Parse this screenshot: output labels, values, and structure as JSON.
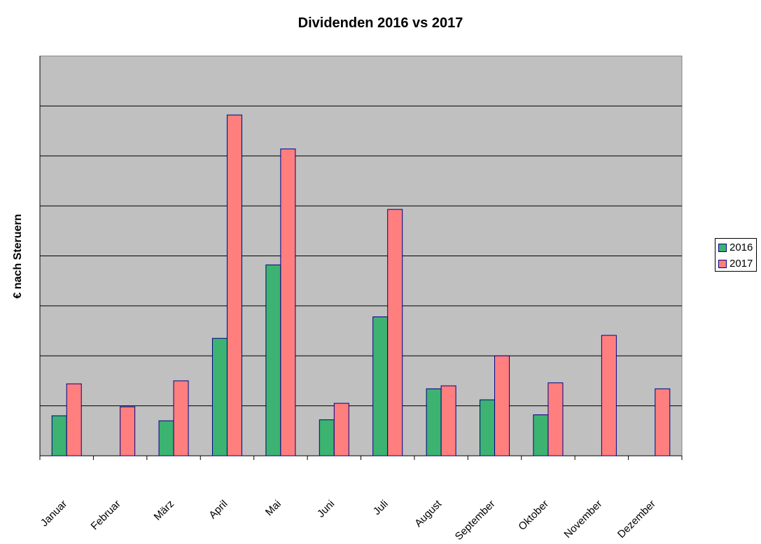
{
  "chart_data": {
    "type": "bar",
    "title": "Dividenden 2016 vs 2017",
    "xlabel": "",
    "ylabel": "€ nach Steruern",
    "categories": [
      "Januar",
      "Februar",
      "März",
      "April",
      "Mai",
      "Juni",
      "Juli",
      "August",
      "September",
      "Oktober",
      "November",
      "Dezember"
    ],
    "series": [
      {
        "name": "2016",
        "color": "#3cb371",
        "values": [
          0.8,
          0,
          0.7,
          2.35,
          3.82,
          0.72,
          2.78,
          1.34,
          1.12,
          0.82,
          0,
          0
        ]
      },
      {
        "name": "2017",
        "color": "#ff7f7f",
        "values": [
          1.44,
          0.98,
          1.5,
          6.82,
          6.14,
          1.05,
          4.93,
          1.4,
          2.0,
          1.46,
          2.41,
          1.34
        ]
      }
    ],
    "ylim": [
      0,
      8
    ],
    "yticks_labeled": false,
    "grid": true,
    "legend_position": "right",
    "plot_background": "#c0c0c0"
  }
}
